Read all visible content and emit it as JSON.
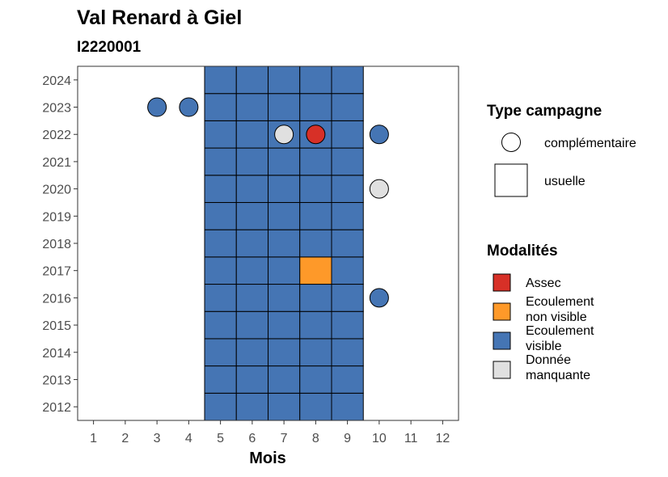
{
  "chart_data": {
    "type": "heatmap",
    "title": "Val Renard à Giel",
    "subtitle": "I2220001",
    "xlabel": "Mois",
    "ylabel": "",
    "x_ticks": [
      1,
      2,
      3,
      4,
      5,
      6,
      7,
      8,
      9,
      10,
      11,
      12
    ],
    "y_ticks": [
      2012,
      2013,
      2014,
      2015,
      2016,
      2017,
      2018,
      2019,
      2020,
      2021,
      2022,
      2023,
      2024
    ],
    "xlim": [
      0.5,
      12.5
    ],
    "ylim": [
      2011.5,
      2024.5
    ],
    "grid": false,
    "colors": {
      "Assec": "#d73027",
      "Ecoulement non visible": "#fe9929",
      "Ecoulement visible": "#4575b4",
      "Donnée manquante": "#e0e0e0"
    },
    "usuelle": {
      "months": [
        5,
        6,
        7,
        8,
        9
      ],
      "years": [
        2012,
        2024
      ],
      "default": "Ecoulement visible",
      "exceptions": [
        {
          "year": 2017,
          "month": 8,
          "modalite": "Ecoulement non visible"
        }
      ]
    },
    "complementaire": [
      {
        "year": 2023,
        "month": 3,
        "modalite": "Ecoulement visible"
      },
      {
        "year": 2023,
        "month": 4,
        "modalite": "Ecoulement visible"
      },
      {
        "year": 2022,
        "month": 7,
        "modalite": "Donnée manquante"
      },
      {
        "year": 2022,
        "month": 8,
        "modalite": "Assec"
      },
      {
        "year": 2022,
        "month": 10,
        "modalite": "Ecoulement visible"
      },
      {
        "year": 2020,
        "month": 10,
        "modalite": "Donnée manquante"
      },
      {
        "year": 2016,
        "month": 10,
        "modalite": "Ecoulement visible"
      }
    ],
    "legend": {
      "position": "right",
      "type_title": "Type campagne",
      "type_items": [
        {
          "label": "complémentaire",
          "shape": "circle"
        },
        {
          "label": "usuelle",
          "shape": "square"
        }
      ],
      "modalites_title": "Modalités",
      "modalites_items": [
        {
          "key": "Assec",
          "lines": [
            "Assec"
          ]
        },
        {
          "key": "Ecoulement non visible",
          "lines": [
            "Ecoulement",
            "non visible"
          ]
        },
        {
          "key": "Ecoulement visible",
          "lines": [
            "Ecoulement",
            "visible"
          ]
        },
        {
          "key": "Donnée manquante",
          "lines": [
            "Donnée",
            "manquante"
          ]
        }
      ]
    }
  }
}
